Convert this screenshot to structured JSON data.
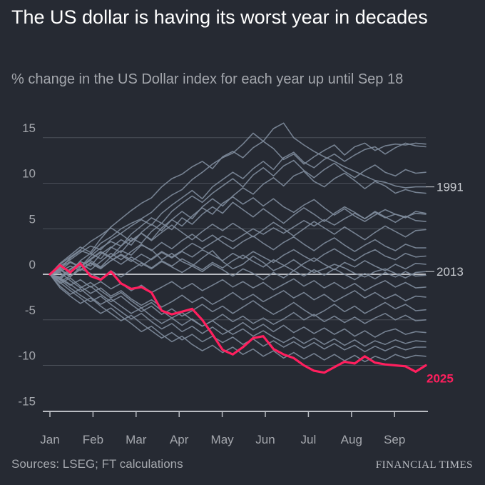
{
  "header": {
    "title": "The US dollar is having its worst year in decades",
    "subtitle": "% change in the US Dollar index for each year up until Sep 18"
  },
  "footer": {
    "source": "Sources: LSEG; FT calculations",
    "brand": "FINANCIAL TIMES"
  },
  "colors": {
    "background": "#262a33",
    "other_years": "#7e8b9b",
    "highlight_2025": "#ff1f5e",
    "grid": "#4a4f59",
    "zero_line": "#b9bcc2",
    "axis_text": "#a4a7ad"
  },
  "chart_data": {
    "type": "line",
    "title": "The US dollar is having its worst year in decades",
    "subtitle": "% change in the US Dollar index for each year up until Sep 18",
    "xlabel": "",
    "ylabel": "",
    "x_tick_labels": [
      "Jan",
      "Feb",
      "Mar",
      "Apr",
      "May",
      "Jun",
      "Jul",
      "Aug",
      "Sep"
    ],
    "y_ticks": [
      15,
      10,
      5,
      0,
      -5,
      -10,
      -15
    ],
    "ylim": [
      -15,
      16.5
    ],
    "grid": true,
    "legend": "direct labels at line ends",
    "x_unit": "week of year (Jan 1 to Sep 18)",
    "x": [
      0,
      1,
      2,
      3,
      4,
      5,
      6,
      7,
      8,
      9,
      10,
      11,
      12,
      13,
      14,
      15,
      16,
      17,
      18,
      19,
      20,
      21,
      22,
      23,
      24,
      25,
      26,
      27,
      28,
      29,
      30,
      31,
      32,
      33,
      34,
      35,
      36,
      37
    ],
    "series": [
      {
        "name": "2025",
        "highlight": true,
        "values": [
          0,
          1.0,
          0.2,
          1.2,
          -0.2,
          -0.6,
          0.3,
          -1.0,
          -1.6,
          -1.4,
          -2.0,
          -4.0,
          -4.4,
          -4.1,
          -3.8,
          -5.0,
          -6.6,
          -8.3,
          -8.8,
          -8.0,
          -7.0,
          -6.8,
          -8.2,
          -8.8,
          -9.2,
          -10.0,
          -10.6,
          -10.8,
          -10.2,
          -9.6,
          -9.8,
          -9.0,
          -9.7,
          -9.9,
          -10.0,
          -10.1,
          -10.7,
          -10.0
        ]
      },
      {
        "name": "1991",
        "values": [
          0,
          0.6,
          1.8,
          2.6,
          2.2,
          3.4,
          4.1,
          5.0,
          5.6,
          6.1,
          6.8,
          7.9,
          8.7,
          9.3,
          10.4,
          11.2,
          12.1,
          12.8,
          13.3,
          14.3,
          15.5,
          14.6,
          16.0,
          16.6,
          15.0,
          14.2,
          13.5,
          12.9,
          12.4,
          11.8,
          11.3,
          10.8,
          10.3,
          10.1,
          9.7,
          9.5,
          9.6,
          9.6
        ]
      },
      {
        "name": "2013",
        "values": [
          0,
          -0.4,
          0.3,
          0.9,
          1.5,
          0.8,
          1.9,
          2.6,
          2.1,
          3.2,
          2.7,
          1.6,
          2.3,
          1.4,
          0.9,
          1.8,
          2.6,
          1.4,
          0.6,
          1.1,
          2.0,
          1.3,
          0.4,
          0.9,
          1.6,
          0.8,
          0.2,
          0.6,
          1.1,
          0.7,
          0.1,
          -0.3,
          0.3,
          0.6,
          0.1,
          -0.4,
          0.2,
          0.3
        ]
      },
      {
        "values": [
          0,
          1.2,
          2.1,
          3.0,
          2.4,
          3.9,
          5.2,
          6.1,
          7.0,
          7.8,
          8.4,
          9.6,
          10.5,
          11.0,
          11.8,
          12.4,
          11.6,
          12.9,
          13.5,
          12.8,
          13.9,
          14.6,
          13.8,
          12.6,
          13.2,
          12.1,
          12.9,
          13.6,
          14.2,
          13.1,
          14.0,
          14.4,
          13.6,
          14.1,
          14.3,
          14.2,
          14.4,
          14.3
        ]
      },
      {
        "values": [
          0,
          0.9,
          1.6,
          2.4,
          3.1,
          2.7,
          3.8,
          4.5,
          5.3,
          6.0,
          5.4,
          6.7,
          7.6,
          8.4,
          9.2,
          8.3,
          9.6,
          10.4,
          11.2,
          10.5,
          11.6,
          12.4,
          11.5,
          12.8,
          13.4,
          12.3,
          11.7,
          12.6,
          13.2,
          12.4,
          13.1,
          13.7,
          14.0,
          13.2,
          13.9,
          14.4,
          14.1,
          14.0
        ]
      },
      {
        "values": [
          0,
          0.4,
          1.3,
          0.8,
          2.0,
          2.9,
          3.6,
          3.1,
          4.4,
          5.3,
          6.2,
          5.6,
          6.9,
          7.8,
          8.6,
          7.9,
          8.9,
          9.7,
          10.5,
          9.6,
          10.9,
          11.7,
          10.8,
          11.9,
          12.5,
          11.4,
          10.6,
          11.5,
          12.2,
          11.3,
          10.6,
          11.4,
          12.0,
          11.2,
          10.8,
          11.5,
          11.1,
          11.2
        ]
      },
      {
        "values": [
          0,
          0.8,
          0.2,
          1.5,
          2.3,
          1.7,
          2.9,
          3.8,
          3.2,
          4.6,
          5.5,
          4.8,
          6.0,
          6.9,
          6.1,
          7.4,
          8.3,
          7.5,
          8.6,
          9.5,
          8.8,
          9.9,
          10.6,
          9.7,
          10.8,
          11.3,
          10.2,
          9.6,
          10.5,
          11.1,
          10.3,
          9.4,
          10.2,
          9.7,
          8.9,
          9.3,
          9.0,
          8.9
        ]
      },
      {
        "values": [
          0,
          -0.6,
          0.5,
          1.4,
          0.9,
          2.2,
          3.0,
          2.4,
          3.7,
          4.5,
          3.8,
          5.1,
          6.0,
          5.3,
          6.4,
          7.3,
          6.6,
          7.8,
          8.5,
          7.7,
          8.4,
          7.5,
          8.3,
          7.4,
          6.8,
          7.6,
          8.2,
          7.3,
          6.5,
          7.2,
          6.4,
          5.8,
          6.5,
          7.1,
          6.6,
          6.2,
          6.9,
          6.7
        ]
      },
      {
        "values": [
          0,
          0.5,
          -0.3,
          0.8,
          1.7,
          2.5,
          1.9,
          3.1,
          4.0,
          3.4,
          4.7,
          5.6,
          4.9,
          6.2,
          5.5,
          6.6,
          7.4,
          6.7,
          7.9,
          7.1,
          6.3,
          7.2,
          6.4,
          5.6,
          6.5,
          7.3,
          6.6,
          5.8,
          6.7,
          7.4,
          6.8,
          6.1,
          6.9,
          6.3,
          5.7,
          6.4,
          5.9,
          5.8
        ]
      },
      {
        "values": [
          0,
          1.1,
          1.9,
          2.7,
          3.6,
          4.3,
          5.1,
          4.4,
          3.6,
          4.5,
          3.7,
          4.6,
          5.4,
          4.6,
          3.8,
          4.7,
          5.5,
          4.8,
          5.6,
          4.9,
          4.1,
          4.9,
          5.7,
          5.0,
          4.2,
          5.0,
          5.8,
          5.1,
          4.4,
          5.2,
          4.5,
          3.8,
          4.6,
          5.3,
          4.7,
          4.1,
          4.8,
          4.9
        ]
      },
      {
        "values": [
          0,
          -0.3,
          0.6,
          1.2,
          0.5,
          1.4,
          2.3,
          1.6,
          2.5,
          3.3,
          2.6,
          3.5,
          2.8,
          3.7,
          4.4,
          3.6,
          4.3,
          3.5,
          2.8,
          3.6,
          4.2,
          3.4,
          2.7,
          3.5,
          4.1,
          3.3,
          2.6,
          3.4,
          4.0,
          3.2,
          2.5,
          3.2,
          3.8,
          3.1,
          2.6,
          3.3,
          2.9,
          2.9
        ]
      },
      {
        "values": [
          0,
          0.3,
          0.9,
          0.4,
          1.2,
          0.6,
          1.5,
          2.1,
          1.4,
          2.2,
          1.6,
          2.4,
          1.8,
          2.5,
          1.9,
          2.7,
          2.1,
          1.5,
          2.3,
          1.7,
          2.5,
          1.9,
          1.3,
          2.1,
          2.7,
          2.0,
          1.4,
          2.2,
          2.8,
          2.1,
          1.5,
          2.2,
          2.7,
          2.0,
          1.6,
          2.3,
          1.9,
          2.0
        ]
      },
      {
        "values": [
          0,
          0.7,
          1.4,
          0.8,
          1.6,
          2.4,
          1.8,
          1.1,
          1.9,
          1.3,
          0.7,
          1.5,
          0.9,
          1.7,
          1.1,
          0.5,
          1.3,
          0.7,
          1.5,
          2.1,
          1.4,
          0.8,
          1.6,
          1.0,
          0.4,
          1.2,
          1.8,
          1.1,
          0.5,
          1.3,
          0.8,
          1.5,
          0.9,
          0.4,
          1.1,
          0.6,
          1.2,
          1.1
        ]
      },
      {
        "values": [
          0,
          -0.8,
          -0.2,
          0.6,
          0.1,
          -0.5,
          0.4,
          -0.3,
          0.5,
          1.2,
          0.6,
          1.4,
          0.8,
          0.2,
          0.9,
          0.3,
          1.1,
          0.5,
          -0.2,
          0.6,
          0.1,
          -0.6,
          0.2,
          -0.4,
          0.4,
          -0.2,
          0.5,
          -0.1,
          0.6,
          0.0,
          -0.6,
          0.1,
          -0.5,
          0.2,
          -0.3,
          0.3,
          -0.2,
          -0.1
        ]
      },
      {
        "values": [
          0,
          -0.5,
          -1.2,
          -0.6,
          -1.4,
          -0.8,
          -1.6,
          -1.0,
          -1.8,
          -1.2,
          -2.0,
          -1.4,
          -0.8,
          -1.6,
          -1.0,
          -1.8,
          -1.2,
          -0.6,
          -1.4,
          -0.8,
          -1.5,
          -0.9,
          -1.7,
          -1.1,
          -0.5,
          -1.3,
          -0.7,
          -1.5,
          -0.9,
          -1.6,
          -1.0,
          -1.8,
          -1.2,
          -0.7,
          -1.4,
          -0.9,
          -1.5,
          -1.4
        ]
      },
      {
        "values": [
          0,
          -1.0,
          -0.4,
          -1.3,
          -2.1,
          -1.5,
          -2.4,
          -1.8,
          -2.7,
          -3.4,
          -2.8,
          -3.6,
          -3.0,
          -2.3,
          -3.1,
          -2.5,
          -3.3,
          -2.7,
          -2.0,
          -2.8,
          -2.2,
          -3.0,
          -2.4,
          -1.8,
          -2.6,
          -2.0,
          -2.8,
          -2.2,
          -3.0,
          -2.4,
          -1.8,
          -2.6,
          -2.0,
          -2.7,
          -2.2,
          -2.9,
          -2.4,
          -2.5
        ]
      },
      {
        "values": [
          0,
          -0.4,
          -1.1,
          -1.9,
          -1.3,
          -2.2,
          -3.0,
          -2.4,
          -3.3,
          -4.1,
          -3.5,
          -4.4,
          -3.8,
          -4.6,
          -4.0,
          -3.3,
          -4.1,
          -3.5,
          -4.3,
          -3.6,
          -2.9,
          -3.7,
          -4.4,
          -3.8,
          -3.1,
          -3.9,
          -4.6,
          -4.0,
          -3.3,
          -4.1,
          -3.5,
          -4.3,
          -3.7,
          -3.1,
          -3.8,
          -3.3,
          -4.0,
          -3.9
        ]
      },
      {
        "values": [
          0,
          -1.3,
          -2.2,
          -1.6,
          -2.5,
          -3.3,
          -2.7,
          -3.5,
          -4.3,
          -3.7,
          -4.6,
          -5.4,
          -4.8,
          -5.6,
          -4.9,
          -5.7,
          -5.1,
          -4.4,
          -5.2,
          -4.6,
          -5.4,
          -4.8,
          -5.5,
          -4.9,
          -4.2,
          -5.0,
          -4.4,
          -5.2,
          -4.6,
          -5.3,
          -4.7,
          -5.4,
          -4.8,
          -4.3,
          -5.0,
          -4.5,
          -5.1,
          -5.0
        ]
      },
      {
        "values": [
          0,
          -0.6,
          -1.5,
          -2.3,
          -3.0,
          -2.4,
          -3.3,
          -4.1,
          -4.9,
          -4.3,
          -5.2,
          -6.0,
          -5.4,
          -6.3,
          -5.7,
          -6.5,
          -5.8,
          -6.6,
          -6.0,
          -5.3,
          -6.1,
          -5.5,
          -6.3,
          -5.6,
          -6.4,
          -5.8,
          -6.5,
          -5.9,
          -6.6,
          -6.0,
          -6.8,
          -6.2,
          -6.9,
          -6.3,
          -6.0,
          -6.6,
          -6.3,
          -6.4
        ]
      },
      {
        "values": [
          0,
          -1.5,
          -2.4,
          -3.2,
          -2.6,
          -3.5,
          -4.3,
          -5.1,
          -4.5,
          -5.4,
          -6.2,
          -7.0,
          -6.4,
          -7.2,
          -6.6,
          -7.4,
          -6.8,
          -7.5,
          -6.9,
          -7.7,
          -7.1,
          -7.9,
          -7.3,
          -8.0,
          -7.4,
          -8.1,
          -7.5,
          -8.2,
          -7.6,
          -8.3,
          -7.8,
          -8.5,
          -7.9,
          -8.4,
          -7.9,
          -8.3,
          -8.0,
          -8.0
        ]
      },
      {
        "values": [
          0,
          -0.9,
          -1.8,
          -2.6,
          -3.5,
          -4.3,
          -3.7,
          -4.6,
          -5.4,
          -6.3,
          -5.7,
          -6.6,
          -7.4,
          -6.8,
          -7.7,
          -8.4,
          -7.8,
          -8.6,
          -8.0,
          -8.8,
          -8.2,
          -9.0,
          -8.4,
          -9.2,
          -8.6,
          -9.3,
          -8.7,
          -9.4,
          -8.8,
          -9.5,
          -8.9,
          -9.6,
          -9.0,
          -9.4,
          -8.8,
          -9.2,
          -8.9,
          -9.0
        ]
      },
      {
        "values": [
          0,
          0.2,
          -0.7,
          -1.5,
          -0.9,
          -1.8,
          -2.6,
          -2.0,
          -2.9,
          -3.7,
          -3.1,
          -4.0,
          -4.8,
          -4.2,
          -5.0,
          -5.7,
          -5.1,
          -5.9,
          -6.6,
          -6.0,
          -6.8,
          -6.2,
          -6.9,
          -7.5,
          -6.9,
          -7.6,
          -7.0,
          -7.7,
          -7.1,
          -7.8,
          -7.2,
          -7.9,
          -7.3,
          -7.7,
          -7.2,
          -7.6,
          -7.3,
          -7.4
        ]
      },
      {
        "values": [
          0,
          0.6,
          -0.2,
          0.5,
          1.3,
          0.7,
          1.5,
          2.2,
          1.6,
          0.9,
          1.7,
          2.5,
          1.9,
          2.6,
          3.4,
          2.8,
          3.5,
          4.2,
          3.6,
          4.3,
          5.0,
          4.4,
          5.1,
          4.5,
          5.2,
          5.9,
          5.3,
          6.0,
          5.4,
          6.1,
          6.7,
          6.1,
          6.8,
          6.2,
          6.6,
          6.3,
          6.7,
          6.6
        ]
      }
    ],
    "direct_labels": [
      "1991",
      "2013",
      "2025"
    ]
  }
}
